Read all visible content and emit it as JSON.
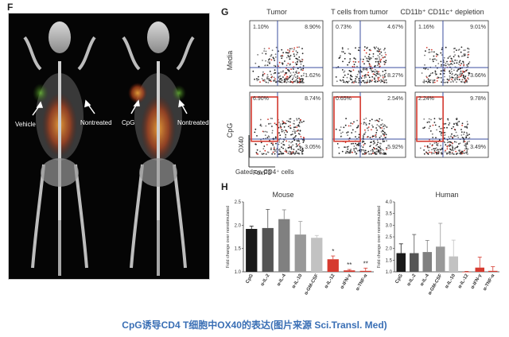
{
  "panels": {
    "f": "F",
    "g": "G",
    "h": "H"
  },
  "panel_f": {
    "labels": [
      "Vehicle",
      "Nontreated",
      "CpG",
      "Nontreated"
    ]
  },
  "panel_g": {
    "columns": [
      "Tumor",
      "T cells from tumor",
      "CD11b⁺ CD11c⁺ depletion"
    ],
    "rows": [
      "Media",
      "CpG"
    ],
    "y_axis": "OX40",
    "x_axis": "FoxP3",
    "gate_note": "Gated on CD4⁺ cells",
    "quadrants": [
      [
        {
          "ul": "1.10%",
          "ur": "8.90%",
          "lr": "1.62%"
        },
        {
          "ul": "0.73%",
          "ur": "4.67%",
          "lr": "8.27%"
        },
        {
          "ul": "1.16%",
          "ur": "9.01%",
          "lr": "3.66%"
        }
      ],
      [
        {
          "ul": "6.90%",
          "ur": "8.74%",
          "lr": "3.05%"
        },
        {
          "ul": "0.65%",
          "ur": "2.54%",
          "lr": "5.92%"
        },
        {
          "ul": "2.24%",
          "ur": "9.78%",
          "lr": "3.49%"
        }
      ]
    ]
  },
  "caption": "CpG诱导CD4 T细胞中OX40的表达(图片来源 Sci.Transl. Med)",
  "colors": {
    "black_bar": "#1a1a1a",
    "gray_dark": "#555555",
    "gray_mid": "#808080",
    "gray_light": "#b3b3b3",
    "gray_lighter": "#cccccc",
    "red": "#d63a2f",
    "caption": "#3a6fb5",
    "quadrant_line": "#3b4fa0"
  },
  "chart_data": [
    {
      "type": "bar",
      "title": "Mouse",
      "ylabel": "Fold change over nonstimulated",
      "ylim": [
        1.0,
        2.5
      ],
      "yticks": [
        "2.5",
        "2.0",
        "1.5",
        "1.0"
      ],
      "categories": [
        "CpG",
        "α-IL-2",
        "α-IL-4",
        "α-IL-10",
        "α-GM-CSF",
        "α-IL-12",
        "α-IFN-γ",
        "α-TNF-α"
      ],
      "values": [
        1.92,
        1.94,
        2.13,
        1.8,
        1.73,
        1.27,
        1.03,
        1.02
      ],
      "errors": [
        0.06,
        0.4,
        0.2,
        0.28,
        0.05,
        0.07,
        0.02,
        0.06
      ],
      "colors": [
        "#1a1a1a",
        "#555555",
        "#808080",
        "#999999",
        "#c2c2c2",
        "#d63a2f",
        "#d63a2f",
        "#d63a2f"
      ],
      "annotations": [
        "",
        "",
        "",
        "",
        "",
        "*",
        "**",
        "**"
      ]
    },
    {
      "type": "bar",
      "title": "Human",
      "ylabel": "Fold change over nonstimulated",
      "ylim": [
        1.0,
        4.0
      ],
      "yticks": [
        "4.0",
        "3.5",
        "3.0",
        "2.5",
        "2.0",
        "1.5",
        "1.0"
      ],
      "categories": [
        "CpG",
        "α-IL-2",
        "α-IL-4",
        "α-GM-CSF",
        "α-IL-10",
        "α-IL-12",
        "α-IFN-γ",
        "α-TNF-α"
      ],
      "values": [
        1.8,
        1.8,
        1.85,
        2.08,
        1.66,
        1.0,
        1.18,
        1.04
      ],
      "errors": [
        0.4,
        0.8,
        0.5,
        1.0,
        0.7,
        0.02,
        0.45,
        0.18
      ],
      "colors": [
        "#1a1a1a",
        "#555555",
        "#808080",
        "#999999",
        "#c2c2c2",
        "#d63a2f",
        "#d63a2f",
        "#d63a2f"
      ],
      "annotations": [
        "",
        "",
        "",
        "",
        "",
        "",
        "",
        ""
      ]
    }
  ]
}
